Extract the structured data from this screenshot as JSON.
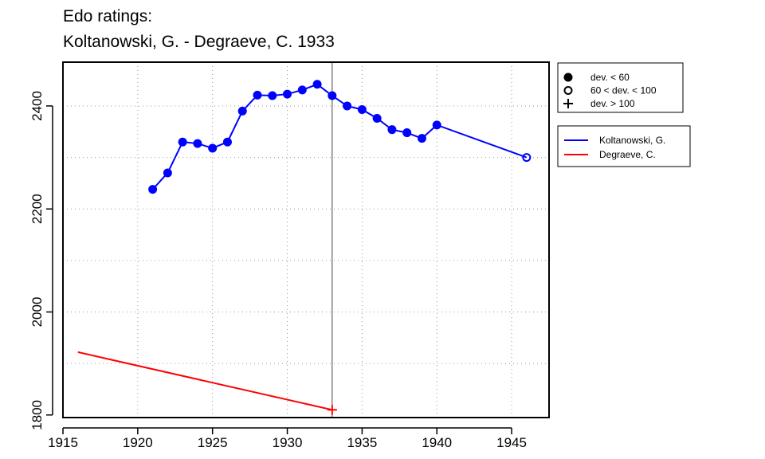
{
  "title_line1": "Edo ratings:",
  "title_line2": "Koltanowski, G. - Degraeve, C. 1933",
  "chart_data": {
    "type": "line",
    "xlim": [
      1915,
      1947.5
    ],
    "ylim": [
      1795,
      2485
    ],
    "x_ticks": [
      1915,
      1920,
      1925,
      1930,
      1935,
      1940,
      1945
    ],
    "y_ticks": [
      1800,
      2000,
      2200,
      2400
    ],
    "grid_x": [
      1920,
      1925,
      1930,
      1935,
      1940,
      1945
    ],
    "grid_y": [
      1900,
      2000,
      2100,
      2200,
      2300,
      2400
    ],
    "grid": true,
    "grid_style": "dotted",
    "vline_x": 1933,
    "xlabel": "",
    "ylabel": "",
    "symbol_legend": {
      "position": "top-right-outside",
      "entries": [
        {
          "symbol": "filled-circle",
          "label": "dev. < 60"
        },
        {
          "symbol": "open-circle",
          "label": "60 < dev. < 100"
        },
        {
          "symbol": "plus",
          "label": "dev. > 100"
        }
      ]
    },
    "series_legend": {
      "position": "right-outside",
      "entries": [
        {
          "label": "Koltanowski, G.",
          "color": "#0000ff"
        },
        {
          "label": "Degraeve, C.",
          "color": "#ff0000"
        }
      ]
    },
    "series": [
      {
        "name": "Koltanowski, G.",
        "color": "#0000ff",
        "points": [
          {
            "x": 1921,
            "y": 2238,
            "dev": "low"
          },
          {
            "x": 1922,
            "y": 2270,
            "dev": "low"
          },
          {
            "x": 1923,
            "y": 2330,
            "dev": "low"
          },
          {
            "x": 1924,
            "y": 2327,
            "dev": "low"
          },
          {
            "x": 1925,
            "y": 2318,
            "dev": "low"
          },
          {
            "x": 1926,
            "y": 2330,
            "dev": "low"
          },
          {
            "x": 1927,
            "y": 2390,
            "dev": "low"
          },
          {
            "x": 1928,
            "y": 2421,
            "dev": "low"
          },
          {
            "x": 1929,
            "y": 2420,
            "dev": "low"
          },
          {
            "x": 1930,
            "y": 2423,
            "dev": "low"
          },
          {
            "x": 1931,
            "y": 2431,
            "dev": "low"
          },
          {
            "x": 1932,
            "y": 2442,
            "dev": "low"
          },
          {
            "x": 1933,
            "y": 2420,
            "dev": "low"
          },
          {
            "x": 1934,
            "y": 2400,
            "dev": "low"
          },
          {
            "x": 1935,
            "y": 2393,
            "dev": "low"
          },
          {
            "x": 1936,
            "y": 2376,
            "dev": "low"
          },
          {
            "x": 1937,
            "y": 2354,
            "dev": "low"
          },
          {
            "x": 1938,
            "y": 2348,
            "dev": "low"
          },
          {
            "x": 1939,
            "y": 2337,
            "dev": "low"
          },
          {
            "x": 1940,
            "y": 2363,
            "dev": "low"
          },
          {
            "x": 1946,
            "y": 2300,
            "dev": "mid"
          }
        ]
      },
      {
        "name": "Degraeve, C.",
        "color": "#ff0000",
        "points": [
          {
            "x": 1916,
            "y": 1922,
            "dev": "none"
          },
          {
            "x": 1933,
            "y": 1810,
            "dev": "high"
          }
        ]
      }
    ]
  }
}
